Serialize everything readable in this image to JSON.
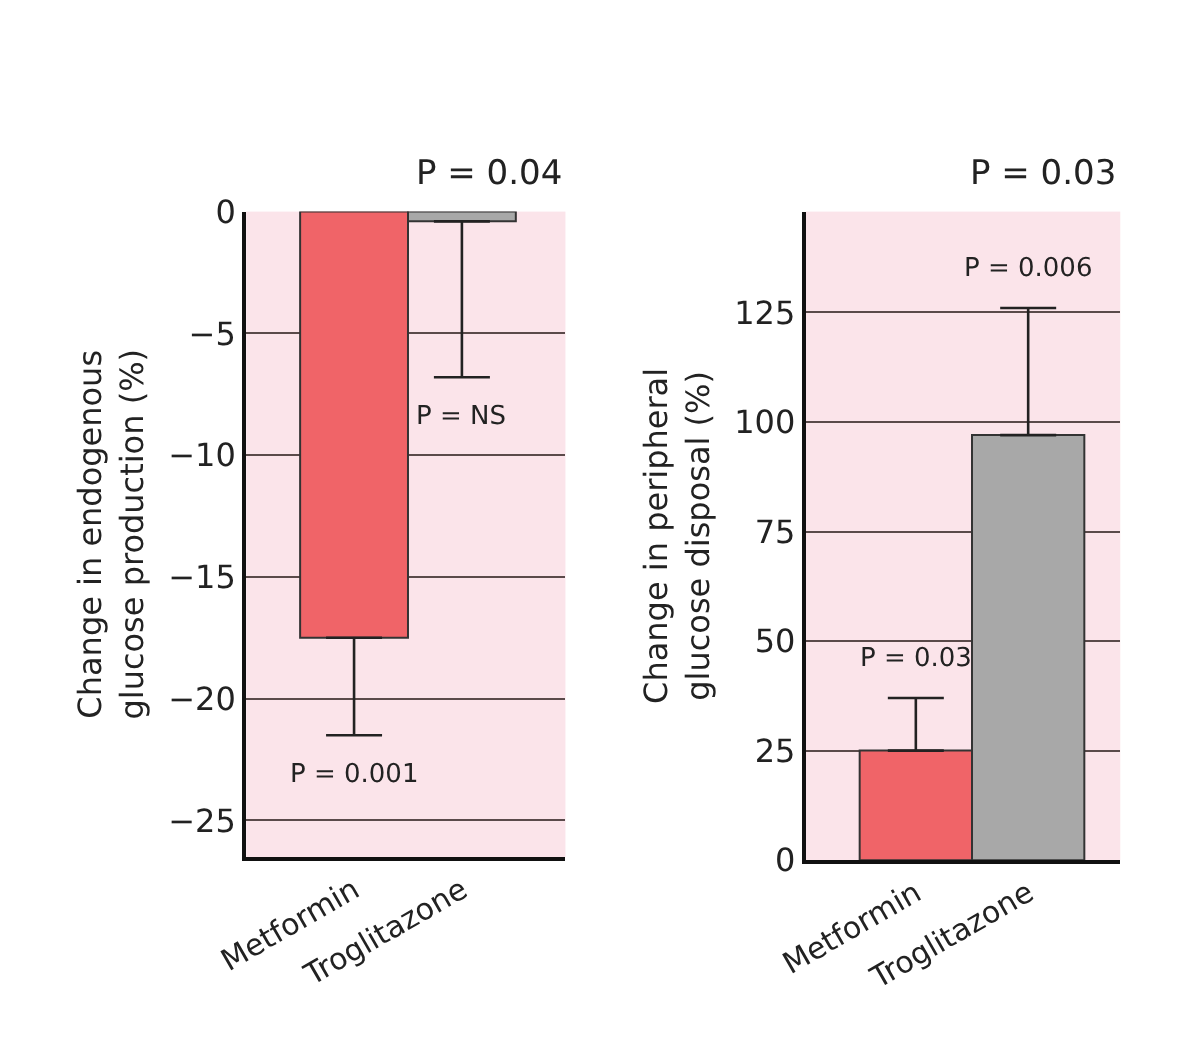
{
  "chart_data": [
    {
      "type": "bar",
      "ylabel": "Change in endogenous\nglucose production (%)",
      "categories": [
        "Metformin",
        "Troglitazone"
      ],
      "values": [
        -17.5,
        -0.4
      ],
      "colors": [
        "#f06468",
        "#a8a8a8"
      ],
      "errors": [
        [
          -21.5,
          -17.5
        ],
        [
          -6.8,
          -0.4
        ]
      ],
      "ylim": [
        -26.5,
        0
      ],
      "yticks": [
        0,
        {
          "value": -5,
          "label": "−5"
        },
        {
          "value": -10,
          "label": "−10"
        },
        {
          "value": -15,
          "label": "−15"
        },
        {
          "value": -20,
          "label": "−20"
        },
        {
          "value": -25,
          "label": "−25"
        }
      ],
      "grid": "y",
      "annotations": [
        "P = 0.001",
        "P = NS",
        "P = 0.04"
      ]
    },
    {
      "type": "bar",
      "ylabel": "Change in peripheral\nglucose disposal (%)",
      "categories": [
        "Metformin",
        "Troglitazone"
      ],
      "values": [
        25,
        97
      ],
      "colors": [
        "#f06468",
        "#a8a8a8"
      ],
      "errors": [
        [
          25,
          37
        ],
        [
          97,
          126
        ]
      ],
      "ylim": [
        0,
        148
      ],
      "yticks": [
        0,
        25,
        50,
        75,
        100,
        125
      ],
      "grid": "y",
      "annotations": [
        "P = 0.03",
        "P = 0.006",
        "P = 0.03"
      ]
    }
  ]
}
